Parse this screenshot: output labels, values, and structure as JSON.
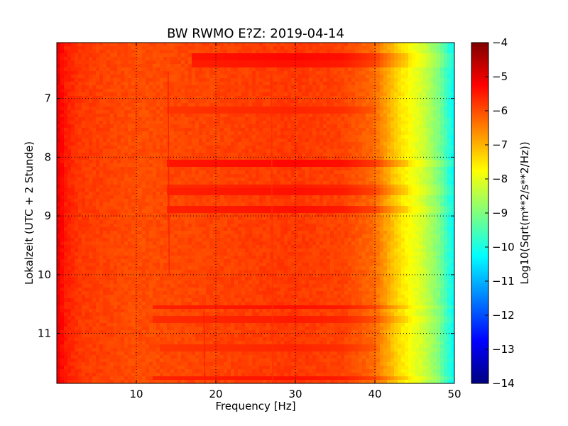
{
  "chart_data": {
    "type": "heatmap",
    "title": "BW RWMO E?Z: 2019-04-14",
    "xlabel": "Frequency [Hz]",
    "ylabel": "Lokalzeit (UTC + 2 Stunde)",
    "xlim": [
      0,
      50
    ],
    "ylim": [
      11.85,
      6.05
    ],
    "x_ticks": [
      {
        "value": 10,
        "label": "10"
      },
      {
        "value": 20,
        "label": "20"
      },
      {
        "value": 30,
        "label": "30"
      },
      {
        "value": 40,
        "label": "40"
      },
      {
        "value": 50,
        "label": "50"
      }
    ],
    "y_ticks": [
      {
        "value": 7,
        "label": "7"
      },
      {
        "value": 8,
        "label": "8"
      },
      {
        "value": 9,
        "label": "9"
      },
      {
        "value": 10,
        "label": "10"
      },
      {
        "value": 11,
        "label": "11"
      }
    ],
    "grid": true,
    "colormap": "jet",
    "colorbar": {
      "label": "Log10(Sqrt(m**2/s**2/Hz))",
      "range": [
        -14,
        -4
      ],
      "ticks": [
        -4,
        -5,
        -6,
        -7,
        -8,
        -9,
        -10,
        -11,
        -12,
        -13,
        -14
      ],
      "tick_labels": [
        "−4",
        "−5",
        "−6",
        "−7",
        "−8",
        "−9",
        "−10",
        "−11",
        "−12",
        "−13",
        "−14"
      ]
    },
    "spectral_profile": [
      {
        "freq": 0,
        "value": -5.0
      },
      {
        "freq": 1,
        "value": -5.5
      },
      {
        "freq": 3,
        "value": -5.8
      },
      {
        "freq": 10,
        "value": -6.0
      },
      {
        "freq": 20,
        "value": -5.9
      },
      {
        "freq": 30,
        "value": -5.8
      },
      {
        "freq": 36,
        "value": -5.9
      },
      {
        "freq": 40,
        "value": -6.3
      },
      {
        "freq": 43,
        "value": -7.4
      },
      {
        "freq": 46,
        "value": -8.2
      },
      {
        "freq": 48,
        "value": -9.0
      },
      {
        "freq": 50,
        "value": -10.3
      }
    ],
    "horizontal_bands": [
      {
        "time": 6.3,
        "fmin": 17,
        "fmax": 50,
        "value": -5.4
      },
      {
        "time": 6.42,
        "fmin": 17,
        "fmax": 50,
        "value": -5.5
      },
      {
        "time": 7.2,
        "fmin": 14,
        "fmax": 40,
        "value": -5.7
      },
      {
        "time": 8.12,
        "fmin": 14,
        "fmax": 50,
        "value": -5.4
      },
      {
        "time": 8.5,
        "fmin": 14,
        "fmax": 50,
        "value": -5.6
      },
      {
        "time": 8.6,
        "fmin": 14,
        "fmax": 50,
        "value": -5.5
      },
      {
        "time": 8.88,
        "fmin": 14,
        "fmax": 50,
        "value": -5.5
      },
      {
        "time": 10.55,
        "fmin": 12,
        "fmax": 50,
        "value": -5.5
      },
      {
        "time": 10.78,
        "fmin": 12,
        "fmax": 50,
        "value": -5.6
      },
      {
        "time": 11.25,
        "fmin": 13,
        "fmax": 40,
        "value": -5.7
      },
      {
        "time": 11.75,
        "fmin": 12,
        "fmax": 50,
        "value": -5.5
      }
    ],
    "vertical_lines": [
      {
        "freq": 14.0,
        "tmin": 6.55,
        "tmax": 10.0,
        "value": -5.5
      },
      {
        "freq": 18.5,
        "tmin": 10.6,
        "tmax": 11.85,
        "value": -5.5
      },
      {
        "freq": 27.0,
        "tmin": 6.6,
        "tmax": 11.85,
        "value": -5.7
      }
    ]
  }
}
